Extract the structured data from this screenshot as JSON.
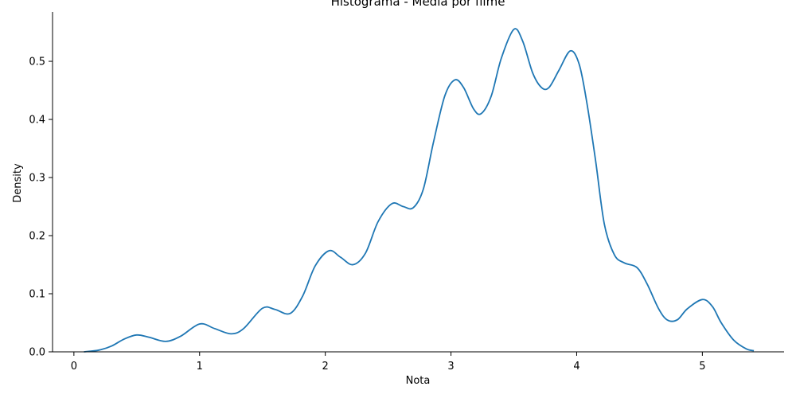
{
  "chart_data": {
    "type": "line",
    "title": "Histograma - Média por filme",
    "xlabel": "Nota",
    "ylabel": "Density",
    "xlim": [
      -0.17,
      5.65
    ],
    "ylim": [
      0,
      0.585
    ],
    "xticks": [
      0,
      1,
      2,
      3,
      4,
      5
    ],
    "xtick_labels": [
      "0",
      "1",
      "2",
      "3",
      "4",
      "5"
    ],
    "yticks": [
      0.0,
      0.1,
      0.2,
      0.3,
      0.4,
      0.5
    ],
    "ytick_labels": [
      "0.0",
      "0.1",
      "0.2",
      "0.3",
      "0.4",
      "0.5"
    ],
    "grid": false,
    "series": [
      {
        "color": "#1f77b4",
        "x": [
          0.08,
          0.2,
          0.3,
          0.4,
          0.5,
          0.6,
          0.73,
          0.85,
          1.0,
          1.12,
          1.25,
          1.35,
          1.5,
          1.6,
          1.72,
          1.82,
          1.92,
          2.03,
          2.12,
          2.22,
          2.32,
          2.42,
          2.53,
          2.62,
          2.7,
          2.78,
          2.86,
          2.95,
          3.03,
          3.1,
          3.18,
          3.24,
          3.32,
          3.4,
          3.5,
          3.57,
          3.65,
          3.72,
          3.78,
          3.86,
          3.95,
          4.02,
          4.08,
          4.15,
          4.22,
          4.3,
          4.38,
          4.48,
          4.56,
          4.65,
          4.72,
          4.8,
          4.88,
          5.0,
          5.08,
          5.15,
          5.25,
          5.35,
          5.41
        ],
        "y": [
          0.0,
          0.003,
          0.01,
          0.022,
          0.029,
          0.025,
          0.018,
          0.027,
          0.048,
          0.04,
          0.031,
          0.04,
          0.075,
          0.073,
          0.066,
          0.096,
          0.148,
          0.174,
          0.163,
          0.15,
          0.17,
          0.224,
          0.255,
          0.25,
          0.248,
          0.28,
          0.36,
          0.44,
          0.468,
          0.455,
          0.418,
          0.41,
          0.44,
          0.505,
          0.555,
          0.535,
          0.48,
          0.455,
          0.455,
          0.485,
          0.518,
          0.495,
          0.43,
          0.33,
          0.22,
          0.167,
          0.153,
          0.145,
          0.117,
          0.075,
          0.055,
          0.055,
          0.074,
          0.09,
          0.078,
          0.05,
          0.02,
          0.005,
          0.002
        ]
      }
    ]
  }
}
